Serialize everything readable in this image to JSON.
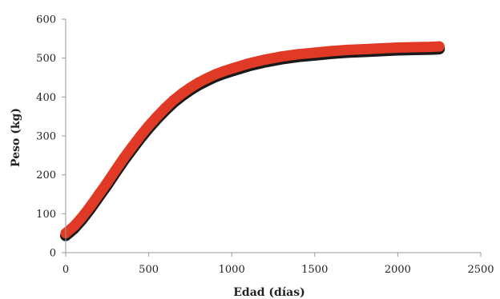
{
  "chart_data": {
    "type": "line",
    "title": "",
    "xlabel": "Edad (días)",
    "ylabel": "Peso (kg)",
    "xlim": [
      0,
      2500
    ],
    "ylim": [
      0,
      600
    ],
    "xticks": [
      0,
      500,
      1000,
      1500,
      2000,
      2500
    ],
    "yticks": [
      0,
      100,
      200,
      300,
      400,
      500,
      600
    ],
    "grid": false,
    "legend": "none",
    "series": [
      {
        "line_color": "#e03a26",
        "outline_color": "#1a1a1a",
        "x": [
          0,
          50,
          100,
          150,
          200,
          250,
          300,
          350,
          400,
          450,
          500,
          550,
          600,
          650,
          700,
          750,
          800,
          850,
          900,
          950,
          1000,
          1100,
          1200,
          1300,
          1400,
          1500,
          1600,
          1700,
          1800,
          1900,
          2000,
          2100,
          2200,
          2250
        ],
        "y": [
          50,
          68,
          92,
          120,
          150,
          180,
          212,
          243,
          272,
          300,
          326,
          350,
          372,
          392,
          409,
          424,
          437,
          448,
          458,
          466,
          473,
          486,
          496,
          504,
          510,
          514,
          518,
          521,
          523,
          525,
          527,
          528,
          529,
          530
        ]
      }
    ]
  }
}
